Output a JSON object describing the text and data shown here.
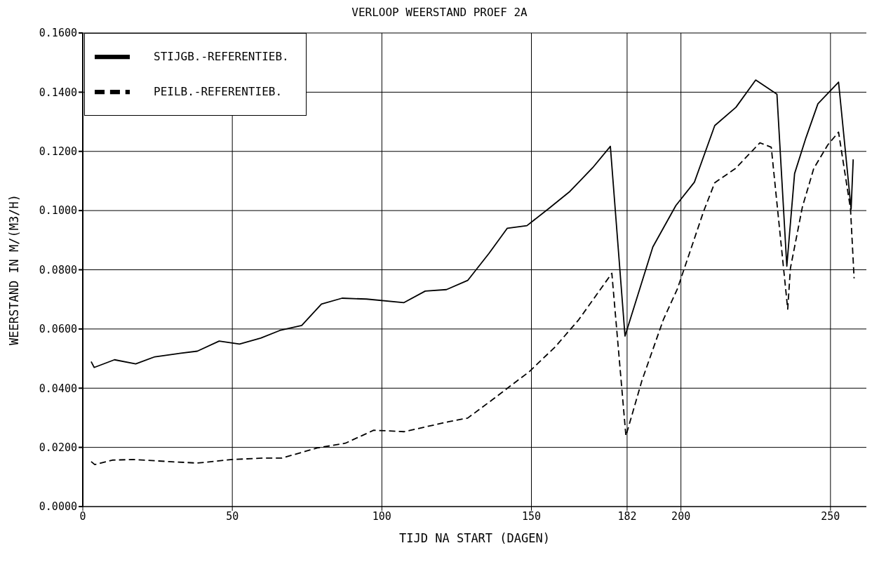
{
  "chart_data": {
    "type": "line",
    "title": "VERLOOP WEERSTAND PROEF 2A",
    "xlabel": "TIJD NA START (DAGEN)",
    "ylabel": "WEERSTAND IN M/(M3/H)",
    "xlim": [
      0,
      262
    ],
    "xticks": [
      0,
      50,
      100,
      150,
      182,
      200,
      250
    ],
    "ylim": [
      0,
      0.16
    ],
    "yticks": [
      {
        "value": 0,
        "label": "0.0000"
      },
      {
        "value": 0.02,
        "label": "0.0200"
      },
      {
        "value": 0.04,
        "label": "0.0400"
      },
      {
        "value": 0.06,
        "label": "0.0600"
      },
      {
        "value": 0.08,
        "label": "0.0800"
      },
      {
        "value": 0.1,
        "label": "0.1000"
      },
      {
        "value": 0.12,
        "label": "0.1200"
      },
      {
        "value": 0.14,
        "label": "0.1400"
      },
      {
        "value": 0.16,
        "label": "0.1600"
      }
    ],
    "grid": true,
    "legend": "top left",
    "marker": "none",
    "series": [
      {
        "name": "STIJGB.-REFERENTIEB.",
        "color": "#000000",
        "line_style": "solid",
        "x": [
          2.8,
          3.8,
          10.6,
          17.7,
          24.1,
          31.2,
          38.3,
          45.6,
          52.4,
          59.5,
          65.9,
          73.2,
          79.8,
          86.7,
          94.9,
          107.4,
          114.5,
          121.6,
          128.7,
          135.8,
          141.9,
          148.5,
          155.8,
          162.9,
          170.5,
          176.4,
          181.3,
          190.6,
          198.3,
          204.5,
          211.3,
          218.4,
          225.0,
          232.1,
          235.4,
          238.0,
          241.8,
          245.8,
          252.7,
          256.9,
          257.6
        ],
        "values": [
          0.049,
          0.047,
          0.0496,
          0.0482,
          0.0506,
          0.0516,
          0.0525,
          0.0559,
          0.0549,
          0.0569,
          0.0595,
          0.0612,
          0.0684,
          0.0704,
          0.0701,
          0.0689,
          0.0728,
          0.0733,
          0.0764,
          0.0855,
          0.094,
          0.0949,
          0.1007,
          0.1065,
          0.1145,
          0.1217,
          0.0576,
          0.0877,
          0.1017,
          0.1096,
          0.1287,
          0.1349,
          0.1441,
          0.1393,
          0.0812,
          0.1125,
          0.1246,
          0.1361,
          0.1434,
          0.1005,
          0.1173
        ]
      },
      {
        "name": "PEILB.-REFERENTIEB.",
        "color": "#000000",
        "line_style": "dashed",
        "x": [
          2.8,
          4.0,
          9.9,
          17.0,
          28.8,
          38.3,
          50.0,
          60.7,
          66.6,
          78.4,
          87.8,
          97.3,
          107.4,
          122.5,
          128.7,
          136.7,
          142.9,
          149.2,
          158.0,
          165.8,
          176.9,
          181.6,
          187.0,
          194.1,
          198.8,
          207.6,
          211.3,
          218.2,
          226.4,
          230.2,
          235.7,
          236.6,
          240.6,
          244.4,
          249.1,
          252.7,
          256.7,
          257.9
        ],
        "values": [
          0.0152,
          0.0142,
          0.0157,
          0.0159,
          0.0152,
          0.0147,
          0.0159,
          0.0164,
          0.0164,
          0.0198,
          0.0214,
          0.0258,
          0.0253,
          0.0287,
          0.0299,
          0.0359,
          0.0407,
          0.0455,
          0.054,
          0.0631,
          0.0788,
          0.0239,
          0.0427,
          0.0631,
          0.0735,
          0.0998,
          0.1094,
          0.1142,
          0.1229,
          0.1214,
          0.0667,
          0.0805,
          0.1012,
          0.1142,
          0.1222,
          0.1265,
          0.1005,
          0.0771
        ]
      }
    ]
  }
}
